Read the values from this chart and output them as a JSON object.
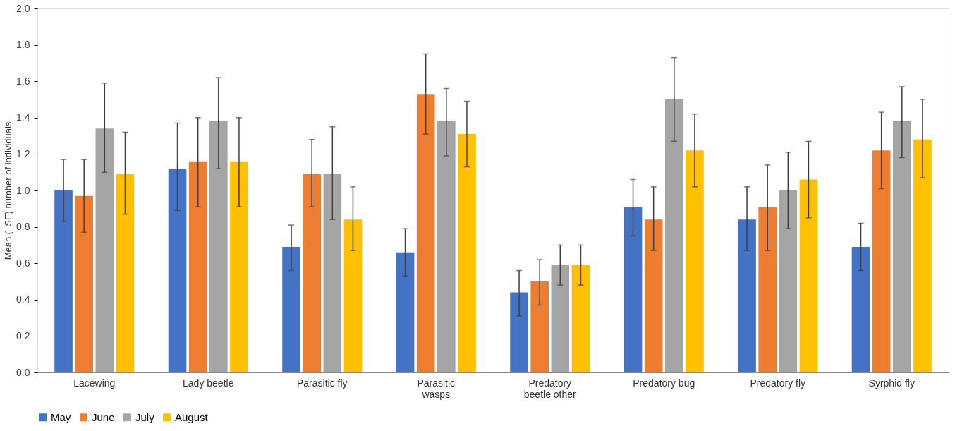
{
  "chart_data": {
    "type": "bar",
    "ylabel": "Mean (±SE) number of individuals",
    "categories": [
      "Lacewing",
      "Lady beetle",
      "Parasitic fly",
      "Parasitic wasps",
      "Predatory beetle other",
      "Predatory bug",
      "Predatory fly",
      "Syrphid fly"
    ],
    "series": [
      {
        "name": "May",
        "color": "#4472c4",
        "values": [
          1.0,
          1.12,
          0.69,
          0.66,
          0.44,
          0.91,
          0.84,
          0.69
        ],
        "errors": [
          [
            0.83,
            1.17
          ],
          [
            0.89,
            1.37
          ],
          [
            0.56,
            0.81
          ],
          [
            0.53,
            0.79
          ],
          [
            0.31,
            0.56
          ],
          [
            0.75,
            1.06
          ],
          [
            0.67,
            1.02
          ],
          [
            0.56,
            0.82
          ]
        ]
      },
      {
        "name": "June",
        "color": "#ed7d31",
        "values": [
          0.97,
          1.16,
          1.09,
          1.53,
          0.5,
          0.84,
          0.91,
          1.22
        ],
        "errors": [
          [
            0.77,
            1.17
          ],
          [
            0.91,
            1.4
          ],
          [
            0.91,
            1.28
          ],
          [
            1.31,
            1.75
          ],
          [
            0.37,
            0.62
          ],
          [
            0.67,
            1.02
          ],
          [
            0.67,
            1.14
          ],
          [
            1.01,
            1.43
          ]
        ]
      },
      {
        "name": "July",
        "color": "#a5a5a5",
        "values": [
          1.34,
          1.38,
          1.09,
          1.38,
          0.59,
          1.5,
          1.0,
          1.38
        ],
        "errors": [
          [
            1.1,
            1.59
          ],
          [
            1.12,
            1.62
          ],
          [
            0.84,
            1.35
          ],
          [
            1.19,
            1.56
          ],
          [
            0.48,
            0.7
          ],
          [
            1.27,
            1.73
          ],
          [
            0.79,
            1.21
          ],
          [
            1.18,
            1.57
          ]
        ]
      },
      {
        "name": "August",
        "color": "#ffc000",
        "values": [
          1.09,
          1.16,
          0.84,
          1.31,
          0.59,
          1.22,
          1.06,
          1.28
        ],
        "errors": [
          [
            0.87,
            1.32
          ],
          [
            0.91,
            1.4
          ],
          [
            0.67,
            1.02
          ],
          [
            1.13,
            1.49
          ],
          [
            0.48,
            0.7
          ],
          [
            1.02,
            1.42
          ],
          [
            0.85,
            1.27
          ],
          [
            1.07,
            1.5
          ]
        ]
      }
    ],
    "ylim": [
      0,
      2.0
    ],
    "yticks": [
      {
        "value": 0,
        "label": "0.0"
      },
      0.2,
      0.4,
      0.6,
      0.8,
      {
        "value": 1.0,
        "label": "1.0"
      },
      1.2,
      1.4,
      1.6,
      1.8,
      {
        "value": 2.0,
        "label": "2.0"
      }
    ],
    "legend": "bottom",
    "grid": false
  }
}
